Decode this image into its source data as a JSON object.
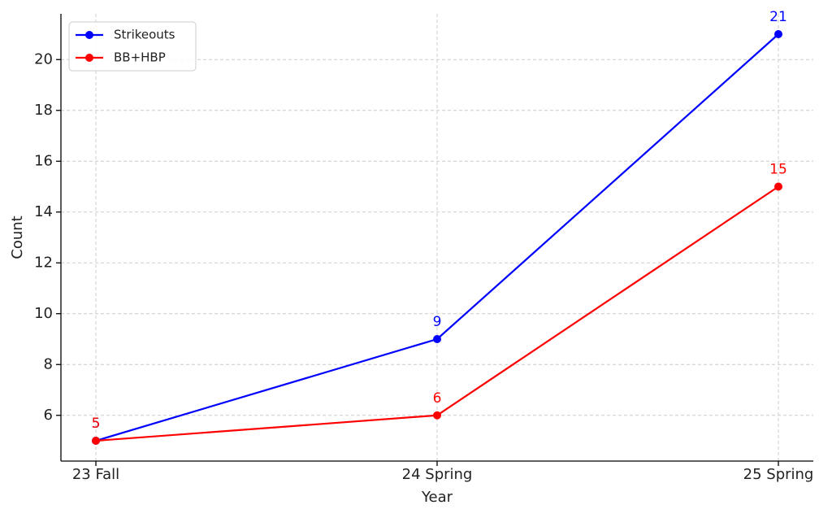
{
  "chart_data": {
    "type": "line",
    "x_label": "Year",
    "y_label": "Count",
    "categories": [
      "23 Fall",
      "24 Spring",
      "25 Spring"
    ],
    "series": [
      {
        "name": "Strikeouts",
        "color": "#0000ff",
        "values": [
          5,
          9,
          21
        ]
      },
      {
        "name": "BB+HBP",
        "color": "#ff0000",
        "values": [
          5,
          6,
          15
        ]
      }
    ],
    "ylim": [
      4.2,
      21.8
    ],
    "yticks": [
      6,
      8,
      10,
      12,
      14,
      16,
      18,
      20
    ],
    "grid": true,
    "legend": "upper left"
  }
}
